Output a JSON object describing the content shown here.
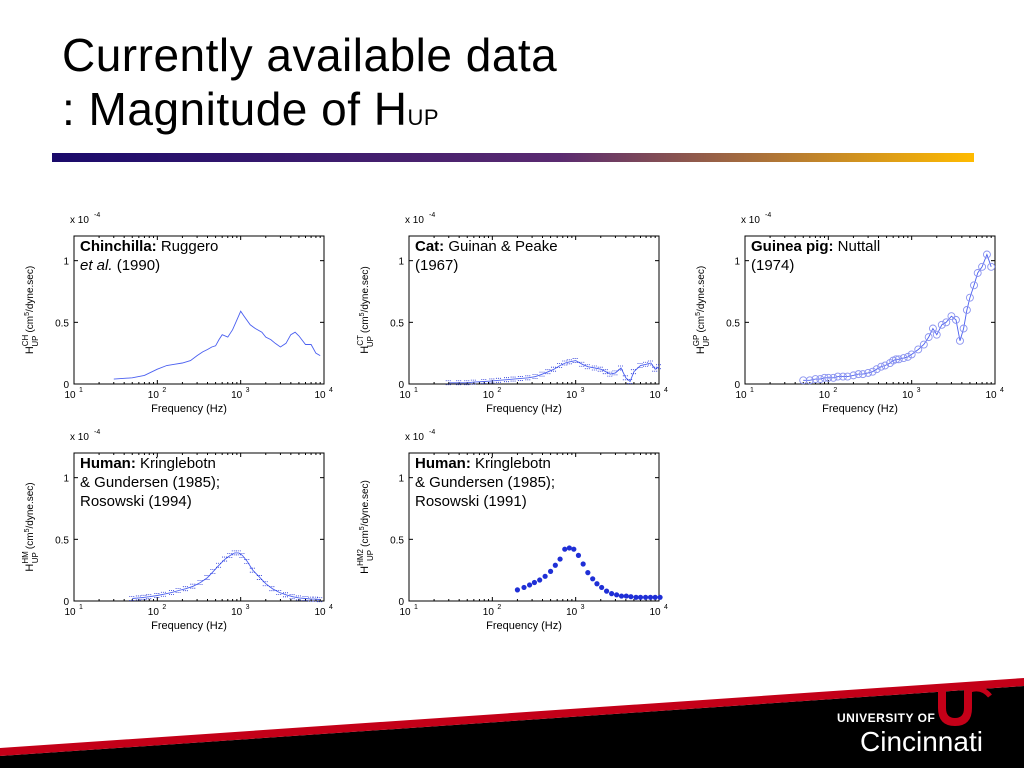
{
  "slide": {
    "title_line1": "Currently available data",
    "title_line2": ": Magnitude of H",
    "title_sub": "UP",
    "logo_line1": "UNIVERSITY OF",
    "logo_line2": "Cincinnati",
    "logo_mark": "UC"
  },
  "colors": {
    "line": "#4a5ff0",
    "marker": "#1f2fd6",
    "title_rule_start": "#1a0a6b",
    "title_rule_end": "#ffb800"
  },
  "chart_data": [
    {
      "id": "chinchilla",
      "type": "line",
      "marker": "none",
      "scale_label": "x 10",
      "scale_exp": "-4",
      "ylabel_pre": "H",
      "ylabel_sup": "CH",
      "ylabel_sub": "UP",
      "ylabel_post": "(cm",
      "ylabel_unit_sup": "5",
      "ylabel_tail": "/dyne.sec)",
      "xlabel": "Frequency (Hz)",
      "xlim": [
        10,
        10000
      ],
      "ylim": [
        0,
        1.2
      ],
      "xscale": "log",
      "yticks": [
        0,
        0.5,
        1
      ],
      "ytick_labels": [
        "0",
        "0.5",
        "1"
      ],
      "xticks": [
        10,
        100,
        1000,
        10000
      ],
      "xtick_base": [
        "10",
        "10",
        "10",
        "10"
      ],
      "xtick_exp": [
        "1",
        "2",
        "3",
        "4"
      ],
      "legend_bold": "Chinchilla:",
      "legend_rest": " Ruggero",
      "legend_line2_italic": "et al.",
      "legend_line2_rest": " (1990)",
      "x": [
        30,
        50,
        70,
        100,
        130,
        160,
        200,
        250,
        300,
        350,
        400,
        450,
        500,
        550,
        600,
        700,
        800,
        900,
        1000,
        1100,
        1300,
        1500,
        1800,
        2000,
        2300,
        2600,
        3000,
        3500,
        4000,
        4500,
        5000,
        6000,
        7000,
        8000,
        9000
      ],
      "y": [
        0.04,
        0.05,
        0.07,
        0.12,
        0.15,
        0.16,
        0.17,
        0.19,
        0.23,
        0.26,
        0.28,
        0.3,
        0.31,
        0.36,
        0.4,
        0.38,
        0.44,
        0.52,
        0.59,
        0.55,
        0.48,
        0.45,
        0.42,
        0.38,
        0.36,
        0.33,
        0.3,
        0.33,
        0.4,
        0.42,
        0.39,
        0.32,
        0.32,
        0.25,
        0.23
      ]
    },
    {
      "id": "cat",
      "type": "line",
      "marker": "dot",
      "scale_label": "x 10",
      "scale_exp": "-4",
      "ylabel_pre": "H",
      "ylabel_sup": "CT",
      "ylabel_sub": "UP",
      "ylabel_post": "(cm",
      "ylabel_unit_sup": "5",
      "ylabel_tail": "/dyne.sec)",
      "xlabel": "Frequency (Hz)",
      "xlim": [
        10,
        10000
      ],
      "ylim": [
        0,
        1.2
      ],
      "xscale": "log",
      "yticks": [
        0,
        0.5,
        1
      ],
      "ytick_labels": [
        "0",
        "0.5",
        "1"
      ],
      "xticks": [
        10,
        100,
        1000,
        10000
      ],
      "xtick_base": [
        "10",
        "10",
        "10",
        "10"
      ],
      "xtick_exp": [
        "1",
        "2",
        "3",
        "4"
      ],
      "legend_bold": "Cat:",
      "legend_rest": " Guinan & Peake",
      "legend_line2_italic": "",
      "legend_line2_rest": "(1967)",
      "x": [
        30,
        40,
        50,
        60,
        80,
        100,
        120,
        150,
        180,
        220,
        270,
        330,
        400,
        470,
        550,
        650,
        750,
        850,
        1000,
        1200,
        1400,
        1700,
        2000,
        2300,
        2600,
        3000,
        3500,
        4000,
        4500,
        5000,
        6000,
        7000,
        8000,
        9000,
        10000
      ],
      "y": [
        0.01,
        0.01,
        0.01,
        0.015,
        0.02,
        0.025,
        0.03,
        0.035,
        0.04,
        0.045,
        0.05,
        0.06,
        0.08,
        0.1,
        0.12,
        0.15,
        0.17,
        0.18,
        0.19,
        0.16,
        0.14,
        0.13,
        0.12,
        0.1,
        0.08,
        0.09,
        0.13,
        0.05,
        0.02,
        0.1,
        0.15,
        0.16,
        0.17,
        0.12,
        0.14
      ]
    },
    {
      "id": "guinea",
      "type": "line",
      "marker": "circle",
      "scale_label": "x 10",
      "scale_exp": "-4",
      "ylabel_pre": "H",
      "ylabel_sup": "GP",
      "ylabel_sub": "UP",
      "ylabel_post": "(cm",
      "ylabel_unit_sup": "5",
      "ylabel_tail": "/dyne.sec)",
      "xlabel": "Frequency (Hz)",
      "xlim": [
        10,
        10000
      ],
      "ylim": [
        0,
        1.2
      ],
      "xscale": "log",
      "yticks": [
        0,
        0.5,
        1
      ],
      "ytick_labels": [
        "0",
        "0.5",
        "1"
      ],
      "xticks": [
        10,
        100,
        1000,
        10000
      ],
      "xtick_base": [
        "10",
        "10",
        "10",
        "10"
      ],
      "xtick_exp": [
        "1",
        "2",
        "3",
        "4"
      ],
      "legend_bold": "Guinea pig:",
      "legend_rest": " Nuttall",
      "legend_line2_italic": "",
      "legend_line2_rest": "(1974)",
      "x": [
        50,
        60,
        70,
        80,
        90,
        100,
        115,
        130,
        150,
        170,
        200,
        230,
        260,
        300,
        340,
        380,
        430,
        480,
        550,
        600,
        650,
        700,
        800,
        900,
        1000,
        1200,
        1400,
        1600,
        1800,
        2000,
        2300,
        2600,
        3000,
        3400,
        3800,
        4200,
        4600,
        5000,
        5600,
        6200,
        7000,
        8000,
        9000
      ],
      "y": [
        0.03,
        0.03,
        0.04,
        0.04,
        0.05,
        0.05,
        0.05,
        0.06,
        0.06,
        0.06,
        0.07,
        0.08,
        0.08,
        0.09,
        0.1,
        0.12,
        0.14,
        0.15,
        0.17,
        0.19,
        0.2,
        0.2,
        0.21,
        0.22,
        0.24,
        0.28,
        0.32,
        0.38,
        0.45,
        0.4,
        0.48,
        0.5,
        0.55,
        0.52,
        0.35,
        0.45,
        0.6,
        0.7,
        0.8,
        0.9,
        0.95,
        1.05,
        0.95
      ]
    },
    {
      "id": "human1",
      "type": "line",
      "marker": "dot",
      "scale_label": "x 10",
      "scale_exp": "-4",
      "ylabel_pre": "H",
      "ylabel_sup": "HM",
      "ylabel_sub": "UP",
      "ylabel_post": "(cm",
      "ylabel_unit_sup": "5",
      "ylabel_tail": "/dyne.sec)",
      "xlabel": "Frequency (Hz)",
      "xlim": [
        10,
        10000
      ],
      "ylim": [
        0,
        1.2
      ],
      "xscale": "log",
      "yticks": [
        0,
        0.5,
        1
      ],
      "ytick_labels": [
        "0",
        "0.5",
        "1"
      ],
      "xticks": [
        10,
        100,
        1000,
        10000
      ],
      "xtick_base": [
        "10",
        "10",
        "10",
        "10"
      ],
      "xtick_exp": [
        "1",
        "2",
        "3",
        "4"
      ],
      "legend_bold": "Human:",
      "legend_rest": " Kringlebotn",
      "legend_line2_italic": "",
      "legend_line2_rest": "& Gundersen (1985);",
      "legend_line3": "Rosowski (1994)",
      "x": [
        50,
        60,
        70,
        80,
        100,
        120,
        150,
        180,
        220,
        270,
        330,
        400,
        470,
        550,
        650,
        750,
        850,
        950,
        1050,
        1200,
        1400,
        1700,
        2000,
        2400,
        2900,
        3500,
        4200,
        5000,
        6000,
        7000,
        8000,
        9000
      ],
      "y": [
        0.02,
        0.025,
        0.03,
        0.035,
        0.045,
        0.055,
        0.07,
        0.085,
        0.1,
        0.12,
        0.15,
        0.19,
        0.24,
        0.29,
        0.34,
        0.37,
        0.39,
        0.39,
        0.37,
        0.32,
        0.25,
        0.19,
        0.14,
        0.1,
        0.07,
        0.05,
        0.035,
        0.025,
        0.02,
        0.015,
        0.015,
        0.01
      ]
    },
    {
      "id": "human2",
      "type": "scatter",
      "marker": "filled",
      "scale_label": "x 10",
      "scale_exp": "-4",
      "ylabel_pre": "H",
      "ylabel_sup": "HM2",
      "ylabel_sub": "UP",
      "ylabel_post": "(cm",
      "ylabel_unit_sup": "5",
      "ylabel_tail": "/dyne.sec)",
      "xlabel": "Frequency (Hz)",
      "xlim": [
        10,
        10000
      ],
      "ylim": [
        0,
        1.2
      ],
      "xscale": "log",
      "yticks": [
        0,
        0.5,
        1
      ],
      "ytick_labels": [
        "0",
        "0.5",
        "1"
      ],
      "xticks": [
        10,
        100,
        1000,
        10000
      ],
      "xtick_base": [
        "10",
        "10",
        "10",
        "10"
      ],
      "xtick_exp": [
        "1",
        "2",
        "3",
        "4"
      ],
      "legend_bold": "Human:",
      "legend_rest": " Kringlebotn",
      "legend_line2_italic": "",
      "legend_line2_rest": "& Gundersen (1985);",
      "legend_line3": "Rosowski (1991)",
      "x": [
        200,
        240,
        280,
        320,
        370,
        430,
        500,
        570,
        650,
        740,
        840,
        950,
        1080,
        1230,
        1400,
        1600,
        1800,
        2050,
        2350,
        2700,
        3100,
        3550,
        4050,
        4600,
        5300,
        6000,
        6900,
        7900,
        9000,
        10300
      ],
      "y": [
        0.09,
        0.11,
        0.13,
        0.15,
        0.17,
        0.2,
        0.24,
        0.29,
        0.34,
        0.42,
        0.43,
        0.42,
        0.37,
        0.3,
        0.23,
        0.18,
        0.14,
        0.11,
        0.08,
        0.06,
        0.05,
        0.04,
        0.04,
        0.035,
        0.03,
        0.03,
        0.03,
        0.03,
        0.03,
        0.03
      ]
    }
  ]
}
